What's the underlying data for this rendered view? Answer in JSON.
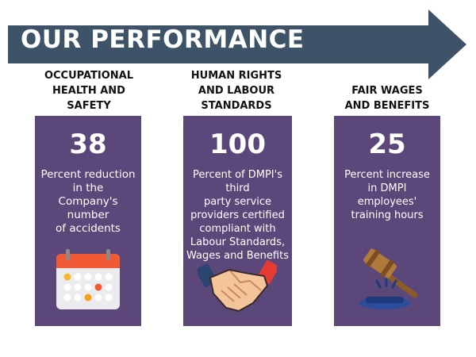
{
  "banner": {
    "title": "OUR PERFORMANCE"
  },
  "colors": {
    "banner": "#3e5368",
    "card": "#5b477a",
    "text": "#ffffff"
  },
  "cards": [
    {
      "heading": "OCCUPATIONAL\nHEALTH AND\nSAFETY",
      "value": "38",
      "description": "Percent reduction\nin the\nCompany's\nnumber\nof accidents",
      "icon": "calendar-icon"
    },
    {
      "heading": "HUMAN RIGHTS\nAND LABOUR\nSTANDARDS",
      "value": "100",
      "description": "Percent of DMPI's\nthird\nparty service\nproviders certified\ncompliant with\nLabour Standards,\nWages and Benefits",
      "icon": "handshake-icon"
    },
    {
      "heading": "FAIR WAGES\nAND BENEFITS",
      "value": "25",
      "description": "Percent increase\nin DMPI\nemployees'\ntraining hours",
      "icon": "gavel-icon"
    }
  ]
}
